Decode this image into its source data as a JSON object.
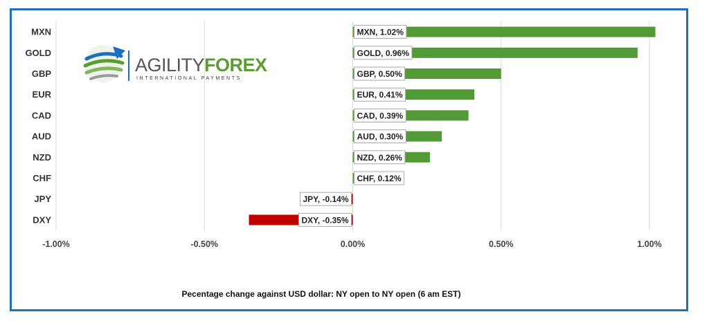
{
  "logo": {
    "name_part1": "AGILITY",
    "name_part2": "FOREX",
    "tagline": "INTERNATIONAL PAYMENTS",
    "colors": {
      "dark": "#555555",
      "green": "#5a9e32",
      "blue": "#1b6fbf"
    }
  },
  "chart_data": {
    "type": "bar",
    "orientation": "horizontal",
    "categories": [
      "MXN",
      "GOLD",
      "GBP",
      "EUR",
      "CAD",
      "AUD",
      "NZD",
      "CHF",
      "JPY",
      "DXY"
    ],
    "values": [
      1.02,
      0.96,
      0.5,
      0.41,
      0.39,
      0.3,
      0.26,
      0.12,
      -0.14,
      -0.35
    ],
    "data_labels": [
      "MXN, 1.02%",
      "GOLD, 0.96%",
      "GBP, 0.50%",
      "EUR, 0.41%",
      "CAD, 0.39%",
      "AUD, 0.30%",
      "NZD, 0.26%",
      "CHF, 0.12%",
      "JPY, -0.14%",
      "DXY, -0.35%"
    ],
    "xlim": [
      -1.0,
      1.0
    ],
    "xticks": [
      -1.0,
      -0.5,
      0.0,
      0.5,
      1.0
    ],
    "xtick_labels": [
      "-1.00%",
      "-0.50%",
      "0.00%",
      "0.50%",
      "1.00%"
    ],
    "xlabel": "Pecentage change against USD dollar:  NY open to NY open  (6 am EST)",
    "grid": "vertical",
    "colors": {
      "positive": "#519a36",
      "negative": "#c00000",
      "grid": "#d9d9d9",
      "frame": "#1f6fbf"
    }
  }
}
